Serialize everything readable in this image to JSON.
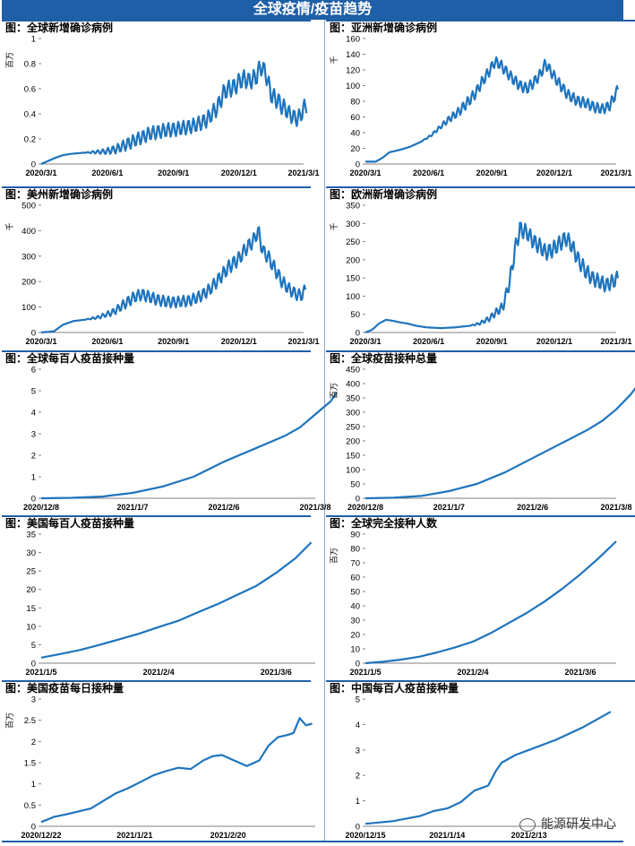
{
  "header": {
    "title": "全球疫情/疫苗趋势"
  },
  "watermark": {
    "text": "能源研发中心",
    "icon": "wechat-icon"
  },
  "colors": {
    "banner": "#1f5fa8",
    "line": "#1e74bd",
    "text": "#000000"
  },
  "chart_data": [
    {
      "id": "c1",
      "type": "line",
      "title": "图：全球新增确诊病例",
      "ylabel": "百万",
      "ylim": [
        0,
        1
      ],
      "yticks": [
        0,
        0.2,
        0.4,
        0.6,
        0.8,
        1
      ],
      "ytick_labels": [
        "0",
        "0.2",
        "0.4",
        "0.6",
        "0.8",
        "1"
      ],
      "xticks": [
        0,
        92,
        184,
        275,
        365
      ],
      "xtick_labels": [
        "2020/3/1",
        "2020/6/1",
        "2020/9/1",
        "2020/12/1",
        "2021/3/1"
      ],
      "x_range": [
        0,
        365
      ],
      "series": [
        {
          "x": [
            0,
            20,
            30,
            40,
            60,
            90,
            105,
            120,
            135,
            150,
            165,
            175,
            190,
            200,
            215,
            230,
            245,
            255,
            262,
            270,
            276,
            282,
            290,
            300,
            305,
            312,
            320,
            330,
            335,
            340,
            345,
            350,
            355,
            360,
            365,
            370
          ],
          "y": [
            0,
            0.05,
            0.07,
            0.08,
            0.09,
            0.1,
            0.12,
            0.16,
            0.2,
            0.24,
            0.26,
            0.27,
            0.28,
            0.29,
            0.31,
            0.35,
            0.45,
            0.58,
            0.6,
            0.62,
            0.66,
            0.68,
            0.66,
            0.7,
            0.78,
            0.73,
            0.55,
            0.5,
            0.46,
            0.44,
            0.4,
            0.38,
            0.36,
            0.38,
            0.44,
            0.48
          ],
          "amp": 0.07,
          "period": 7,
          "start": 60
        }
      ]
    },
    {
      "id": "c2",
      "type": "line",
      "title": "图：亚洲新增确诊病例",
      "ylabel": "千",
      "ylim": [
        0,
        160
      ],
      "yticks": [
        0,
        20,
        40,
        60,
        80,
        100,
        120,
        140,
        160
      ],
      "ytick_labels": [
        "0",
        "20",
        "40",
        "60",
        "80",
        "100",
        "120",
        "140",
        "160"
      ],
      "xticks": [
        0,
        92,
        184,
        275,
        365
      ],
      "xtick_labels": [
        "2020/3/1",
        "2020/6/1",
        "2020/9/1",
        "2020/12/1",
        "2021/3/1"
      ],
      "x_range": [
        0,
        365
      ],
      "series": [
        {
          "x": [
            0,
            15,
            25,
            35,
            50,
            65,
            80,
            95,
            105,
            120,
            135,
            150,
            160,
            170,
            180,
            188,
            195,
            205,
            215,
            225,
            235,
            245,
            255,
            262,
            270,
            280,
            295,
            310,
            320,
            335,
            345,
            355,
            360,
            368
          ],
          "y": [
            3,
            3,
            8,
            15,
            18,
            22,
            28,
            36,
            44,
            56,
            66,
            80,
            90,
            105,
            118,
            130,
            128,
            118,
            108,
            100,
            96,
            104,
            115,
            128,
            118,
            105,
            88,
            80,
            78,
            72,
            70,
            74,
            82,
            96
          ],
          "amp": 7,
          "period": 7,
          "start": 80
        }
      ]
    },
    {
      "id": "c3",
      "type": "line",
      "title": "图：美州新增确诊病例",
      "ylabel": "千",
      "ylim": [
        0,
        500
      ],
      "yticks": [
        0,
        100,
        200,
        300,
        400,
        500
      ],
      "ytick_labels": [
        "0",
        "100",
        "200",
        "300",
        "400",
        "500"
      ],
      "xticks": [
        0,
        92,
        184,
        275,
        365
      ],
      "xtick_labels": [
        "2020/3/1",
        "2020/6/1",
        "2020/9/1",
        "2020/12/1",
        "2021/3/1"
      ],
      "x_range": [
        0,
        365
      ],
      "series": [
        {
          "x": [
            0,
            18,
            30,
            45,
            60,
            80,
            100,
            115,
            130,
            140,
            150,
            160,
            175,
            190,
            205,
            220,
            235,
            250,
            262,
            275,
            285,
            295,
            302,
            308,
            315,
            325,
            335,
            345,
            355,
            362,
            368
          ],
          "y": [
            0,
            5,
            30,
            45,
            50,
            60,
            80,
            110,
            140,
            150,
            140,
            130,
            120,
            120,
            125,
            140,
            170,
            220,
            260,
            290,
            330,
            360,
            400,
            320,
            300,
            250,
            200,
            170,
            150,
            145,
            170
          ],
          "amp": 28,
          "period": 7,
          "start": 60
        }
      ]
    },
    {
      "id": "c4",
      "type": "line",
      "title": "图：欧洲新增确诊病例",
      "ylabel": "千",
      "ylim": [
        0,
        350
      ],
      "yticks": [
        0,
        50,
        100,
        150,
        200,
        250,
        300,
        350
      ],
      "ytick_labels": [
        "0",
        "50",
        "100",
        "150",
        "200",
        "250",
        "300",
        "350"
      ],
      "xticks": [
        0,
        92,
        184,
        275,
        365
      ],
      "xtick_labels": [
        "2020/3/1",
        "2020/6/1",
        "2020/9/1",
        "2020/12/1",
        "2021/3/1"
      ],
      "x_range": [
        0,
        365
      ],
      "series": [
        {
          "x": [
            0,
            10,
            20,
            30,
            40,
            50,
            60,
            75,
            90,
            110,
            130,
            150,
            165,
            180,
            190,
            200,
            210,
            218,
            225,
            235,
            245,
            255,
            262,
            270,
            280,
            292,
            300,
            310,
            320,
            330,
            340,
            350,
            360,
            368
          ],
          "y": [
            0,
            8,
            25,
            35,
            32,
            28,
            25,
            18,
            14,
            12,
            14,
            18,
            24,
            38,
            55,
            70,
            140,
            230,
            285,
            275,
            250,
            235,
            220,
            225,
            240,
            260,
            240,
            200,
            170,
            150,
            140,
            130,
            140,
            150
          ],
          "amp": 22,
          "period": 7,
          "start": 150
        }
      ]
    },
    {
      "id": "c5",
      "type": "line",
      "title": "图：全球每百人疫苗接种量",
      "ylabel": "",
      "ylim": [
        0,
        6
      ],
      "yticks": [
        0,
        1,
        2,
        3,
        4,
        5,
        6
      ],
      "ytick_labels": [
        "0",
        "1",
        "2",
        "3",
        "4",
        "5",
        "6"
      ],
      "xticks": [
        0,
        30,
        60,
        90
      ],
      "xtick_labels": [
        "2020/12/8",
        "2021/1/7",
        "2021/2/6",
        "2021/3/8"
      ],
      "x_range": [
        0,
        90
      ],
      "series": [
        {
          "x": [
            0,
            10,
            20,
            30,
            40,
            50,
            55,
            60,
            70,
            80,
            85,
            90,
            95,
            97
          ],
          "y": [
            0,
            0.02,
            0.08,
            0.25,
            0.55,
            1.0,
            1.35,
            1.7,
            2.3,
            2.9,
            3.3,
            3.9,
            4.5,
            4.9
          ]
        }
      ]
    },
    {
      "id": "c6",
      "type": "line",
      "title": "图：全球疫苗接种总量",
      "ylabel": "百万",
      "ylim": [
        0,
        450
      ],
      "yticks": [
        0,
        50,
        100,
        150,
        200,
        250,
        300,
        350,
        400,
        450
      ],
      "ytick_labels": [
        "0",
        "50",
        "100",
        "150",
        "200",
        "250",
        "300",
        "350",
        "400",
        "450"
      ],
      "xticks": [
        0,
        30,
        60,
        90
      ],
      "xtick_labels": [
        "2020/12/8",
        "2021/1/7",
        "2021/2/6",
        "2021/3/8"
      ],
      "x_range": [
        0,
        90
      ],
      "series": [
        {
          "x": [
            0,
            10,
            20,
            30,
            40,
            50,
            55,
            60,
            70,
            80,
            85,
            90,
            95,
            97
          ],
          "y": [
            0,
            2,
            8,
            25,
            50,
            90,
            115,
            140,
            190,
            240,
            270,
            310,
            360,
            385
          ]
        }
      ]
    },
    {
      "id": "c7",
      "type": "line",
      "title": "图：美国每百人疫苗接种量",
      "ylabel": "",
      "ylim": [
        0,
        35
      ],
      "yticks": [
        0,
        5,
        10,
        15,
        20,
        25,
        30,
        35
      ],
      "ytick_labels": [
        "0",
        "5",
        "10",
        "15",
        "20",
        "25",
        "30",
        "35"
      ],
      "xticks": [
        0,
        30,
        60
      ],
      "xtick_labels": [
        "2021/1/5",
        "2021/2/4",
        "2021/3/6"
      ],
      "x_range": [
        0,
        70
      ],
      "series": [
        {
          "x": [
            0,
            5,
            10,
            15,
            20,
            25,
            30,
            35,
            40,
            45,
            50,
            55,
            60,
            65,
            69
          ],
          "y": [
            1.5,
            2.5,
            3.6,
            5,
            6.5,
            8,
            9.8,
            11.5,
            13.8,
            16,
            18.5,
            21,
            24.5,
            28.5,
            32.8
          ]
        }
      ]
    },
    {
      "id": "c8",
      "type": "line",
      "title": "图：全球完全接种人数",
      "ylabel": "百万",
      "ylim": [
        0,
        90
      ],
      "yticks": [
        0,
        10,
        20,
        30,
        40,
        50,
        60,
        70,
        80,
        90
      ],
      "ytick_labels": [
        "0",
        "10",
        "20",
        "30",
        "40",
        "50",
        "60",
        "70",
        "80",
        "90"
      ],
      "xticks": [
        0,
        30,
        60
      ],
      "xtick_labels": [
        "2021/1/5",
        "2021/2/4",
        "2021/3/6"
      ],
      "x_range": [
        0,
        70
      ],
      "series": [
        {
          "x": [
            0,
            5,
            10,
            15,
            20,
            25,
            30,
            35,
            40,
            45,
            50,
            55,
            60,
            65,
            70
          ],
          "y": [
            0,
            1,
            2.5,
            4.5,
            7.5,
            11,
            15,
            21,
            28,
            35,
            43,
            52,
            62,
            73,
            85
          ]
        }
      ]
    },
    {
      "id": "c9",
      "type": "line",
      "title": "图：美国疫苗每日接种量",
      "ylabel": "百万",
      "ylim": [
        0,
        3
      ],
      "yticks": [
        0,
        0.5,
        1,
        1.5,
        2,
        2.5,
        3
      ],
      "ytick_labels": [
        "0",
        "0.5",
        "1",
        "1.5",
        "2",
        "2.5",
        "3"
      ],
      "xticks": [
        0,
        30,
        60
      ],
      "xtick_labels": [
        "2020/12/22",
        "2021/1/21",
        "2021/2/20"
      ],
      "x_range": [
        0,
        88
      ],
      "series": [
        {
          "x": [
            0,
            4,
            8,
            12,
            16,
            20,
            24,
            28,
            32,
            36,
            40,
            44,
            48,
            52,
            55,
            58,
            62,
            66,
            70,
            73,
            76,
            79,
            81,
            83,
            85,
            87
          ],
          "y": [
            0.1,
            0.22,
            0.28,
            0.35,
            0.42,
            0.6,
            0.78,
            0.9,
            1.05,
            1.2,
            1.3,
            1.38,
            1.35,
            1.55,
            1.65,
            1.68,
            1.55,
            1.42,
            1.55,
            1.9,
            2.1,
            2.15,
            2.2,
            2.55,
            2.38,
            2.42
          ]
        }
      ]
    },
    {
      "id": "c10",
      "type": "line",
      "title": "图：中国每百人疫苗接种量",
      "ylabel": "",
      "ylim": [
        0,
        5
      ],
      "yticks": [
        0,
        1,
        2,
        3,
        4,
        5
      ],
      "ytick_labels": [
        "0",
        "1",
        "2",
        "3",
        "4",
        "5"
      ],
      "xticks": [
        0,
        30,
        60
      ],
      "xtick_labels": [
        "2020/12/15",
        "2021/1/14",
        "2021/2/13"
      ],
      "x_range": [
        0,
        92
      ],
      "series": [
        {
          "x": [
            0,
            10,
            20,
            25,
            30,
            35,
            40,
            45,
            48,
            50,
            55,
            60,
            70,
            80,
            90
          ],
          "y": [
            0.1,
            0.2,
            0.4,
            0.6,
            0.7,
            0.95,
            1.4,
            1.6,
            2.2,
            2.5,
            2.8,
            3.0,
            3.4,
            3.9,
            4.5
          ]
        }
      ]
    }
  ]
}
